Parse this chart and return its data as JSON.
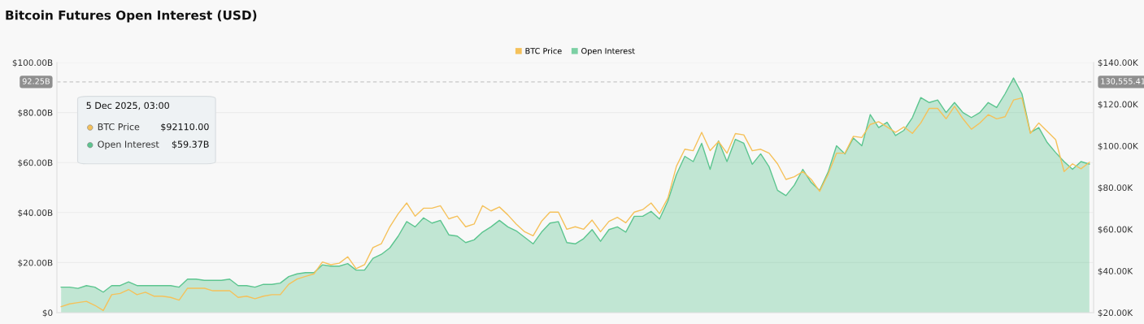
{
  "chart_data": {
    "type": "area",
    "title": "Bitcoin Futures Open Interest (USD)",
    "categories": [
      null,
      null,
      null,
      null,
      null,
      null,
      null,
      null,
      null,
      null,
      null,
      null,
      null,
      null,
      null,
      null,
      null,
      null,
      null,
      null,
      null,
      null,
      null,
      null,
      null,
      null,
      null,
      null,
      null,
      null,
      null,
      null,
      null,
      null,
      null,
      null,
      null,
      null,
      null,
      null,
      null,
      null,
      null,
      null,
      null,
      null,
      null,
      null,
      null,
      null,
      null,
      null,
      null,
      null,
      null,
      null,
      null,
      null,
      null,
      null,
      null,
      null,
      null,
      null,
      null,
      null,
      null,
      null,
      null,
      null,
      null,
      null,
      null,
      null,
      null,
      null,
      null,
      null,
      null,
      null,
      null,
      null,
      null,
      null,
      null,
      null,
      null,
      null,
      null,
      null,
      null,
      null,
      null,
      null,
      null,
      null,
      null,
      null,
      null,
      null,
      null,
      null,
      null,
      null,
      null,
      null,
      null,
      null,
      null,
      null,
      null,
      null,
      null,
      null,
      null,
      null,
      null,
      null,
      null,
      null,
      null,
      null,
      null
    ],
    "series": [
      {
        "name": "BTC Price",
        "type": "line",
        "axis": "y2",
        "color": "#f5c15a",
        "values": [
          22.9,
          24.2,
          24.8,
          25.4,
          23.5,
          21.0,
          28.6,
          29.2,
          31.1,
          28.6,
          29.8,
          27.9,
          27.9,
          27.3,
          26.0,
          31.7,
          31.7,
          31.7,
          30.5,
          30.5,
          30.5,
          27.3,
          27.9,
          26.7,
          27.9,
          28.6,
          28.6,
          33.6,
          36.1,
          37.4,
          38.6,
          44.3,
          43.0,
          43.7,
          46.8,
          41.1,
          43.0,
          51.2,
          53.1,
          61.2,
          67.5,
          72.6,
          66.3,
          70.1,
          70.1,
          71.3,
          65.0,
          66.3,
          61.2,
          62.5,
          71.3,
          68.8,
          70.7,
          66.9,
          62.5,
          58.8,
          56.9,
          63.8,
          68.2,
          68.2,
          60.0,
          61.2,
          60.0,
          64.4,
          58.8,
          63.8,
          65.7,
          63.1,
          68.2,
          69.4,
          72.6,
          67.5,
          75.1,
          90.2,
          98.4,
          97.7,
          106.5,
          97.7,
          102.1,
          96.5,
          105.9,
          105.3,
          97.7,
          98.4,
          96.5,
          91.4,
          83.9,
          85.2,
          87.7,
          83.9,
          78.2,
          86.4,
          96.5,
          96.5,
          104.6,
          104.0,
          110.3,
          111.6,
          109.1,
          106.5,
          109.1,
          106,
          111,
          118,
          118,
          113,
          119,
          113,
          108,
          111,
          115,
          113,
          114,
          122,
          123,
          106,
          111,
          107,
          103,
          87.7,
          91.4,
          89.0,
          92.1
        ]
      },
      {
        "name": "Open Interest",
        "axis": "y",
        "color": "#5cc58f",
        "values": [
          10.2,
          10.2,
          9.7,
          10.8,
          10.2,
          8.2,
          10.8,
          10.8,
          12.3,
          10.8,
          10.8,
          10.8,
          10.8,
          10.8,
          10.2,
          13.4,
          13.4,
          12.9,
          12.9,
          12.9,
          13.4,
          10.8,
          10.8,
          10.2,
          11.3,
          11.3,
          11.8,
          14.4,
          15.5,
          16.0,
          16.0,
          19.1,
          18.6,
          18.6,
          19.6,
          17.0,
          17.0,
          21.7,
          23.3,
          25.9,
          30.6,
          36.4,
          34.3,
          37.9,
          35.8,
          36.9,
          31.1,
          30.6,
          28.0,
          29.1,
          32.2,
          34.3,
          36.9,
          34.3,
          32.7,
          30.1,
          27.5,
          32.2,
          35.8,
          36.4,
          28.0,
          27.5,
          29.6,
          33.2,
          28.5,
          33.2,
          34.3,
          32.2,
          38.5,
          38.5,
          40.5,
          37.4,
          44.7,
          55.2,
          62.5,
          60.4,
          67.7,
          57.3,
          68.7,
          60.4,
          69.3,
          67.7,
          59.3,
          63.5,
          58.3,
          48.9,
          46.8,
          51.0,
          57.3,
          52.0,
          48.9,
          56.2,
          66.7,
          63.5,
          69.8,
          66.7,
          79.2,
          74.0,
          76.1,
          70.8,
          72.9,
          78,
          86,
          84,
          85,
          80,
          84,
          80,
          78,
          80,
          84,
          82,
          87.5,
          93.8,
          87.5,
          72,
          74,
          68,
          64,
          60.4,
          57.3,
          60.4,
          59.4
        ]
      }
    ],
    "ylim": [
      0,
      100
    ],
    "yticks": [
      {
        "value": 0,
        "label": "$0"
      },
      {
        "value": 20,
        "label": "$20.00B"
      },
      {
        "value": 40,
        "label": "$40.00B"
      },
      {
        "value": 60,
        "label": "$60.00B"
      },
      {
        "value": 80,
        "label": "$80.00B"
      },
      {
        "value": 100,
        "label": "$100.00B"
      }
    ],
    "y2lim": [
      20,
      140
    ],
    "y2ticks": [
      {
        "value": 20,
        "label": "$20.00K"
      },
      {
        "value": 40,
        "label": "$40.00K"
      },
      {
        "value": 60,
        "label": "$60.00K"
      },
      {
        "value": 80,
        "label": "$80.00K"
      },
      {
        "value": 100,
        "label": "$100.00K"
      },
      {
        "value": 120,
        "label": "$120.00K"
      },
      {
        "value": 140,
        "label": "$140.00K"
      }
    ],
    "ref_lines": [
      {
        "axis": "y",
        "value": 92.25,
        "label": "92.25B",
        "color": "#c8c8c8",
        "line_style": "dashed"
      }
    ],
    "annotations": [
      "5 Dec 2025, 03:00",
      "BTC Price",
      "$92110.00",
      "Open Interest",
      "$59.37B",
      "130,555.41"
    ],
    "grid": "y",
    "legend": "top",
    "tick_labels": "y"
  }
}
